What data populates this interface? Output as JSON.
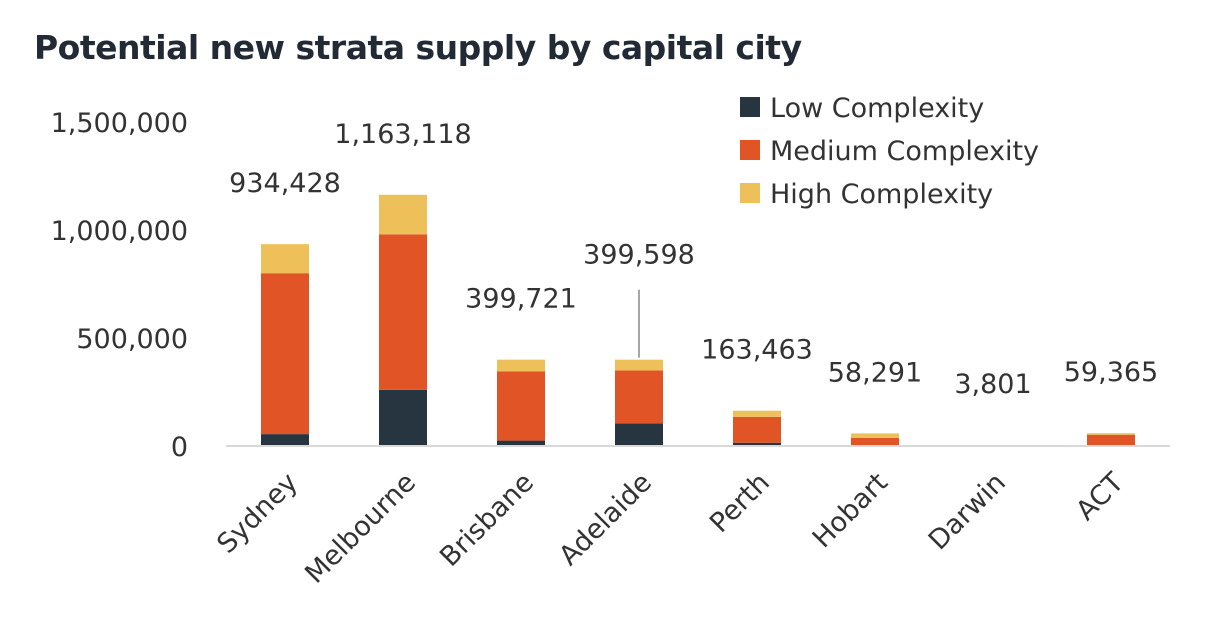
{
  "chart_data": {
    "type": "bar",
    "stacked": true,
    "title": "Potential new strata supply by capital city",
    "categories": [
      "Sydney",
      "Melbourne",
      "Brisbane",
      "Adelaide",
      "Perth",
      "Hobart",
      "Darwin",
      "ACT"
    ],
    "series": [
      {
        "name": "Low Complexity",
        "color": "#263540",
        "values": [
          55000,
          260000,
          25000,
          105000,
          15000,
          3000,
          500,
          2000
        ]
      },
      {
        "name": "Medium Complexity",
        "color": "#e05426",
        "values": [
          745000,
          720000,
          320000,
          245000,
          120000,
          35000,
          2500,
          50000
        ]
      },
      {
        "name": "High Complexity",
        "color": "#eec05a",
        "values": [
          134428,
          183118,
          54721,
          49598,
          28463,
          20291,
          801,
          7365
        ]
      }
    ],
    "totals": [
      "934,428",
      "1,163,118",
      "399,721",
      "399,598",
      "163,463",
      "58,291",
      "3,801",
      "59,365"
    ],
    "yticks": [
      {
        "value": 0,
        "label": "0"
      },
      {
        "value": 500000,
        "label": "500,000"
      },
      {
        "value": 1000000,
        "label": "1,000,000"
      },
      {
        "value": 1500000,
        "label": "1,500,000"
      }
    ],
    "ylim": [
      0,
      1500000
    ],
    "xlabel": "",
    "ylabel": "",
    "grid": false,
    "legend_position": "top-right"
  }
}
